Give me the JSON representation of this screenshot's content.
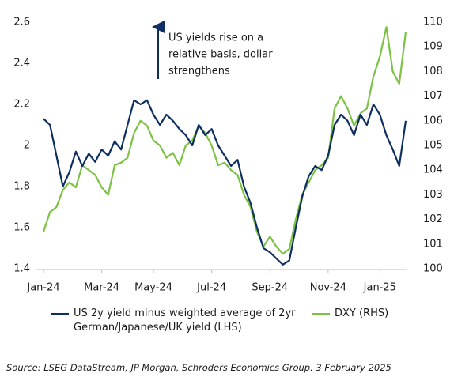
{
  "chart_data": {
    "type": "line",
    "annotation": [
      "US yields rise on a",
      "relative basis, dollar",
      "strengthens"
    ],
    "source": "Source: LSEG DataStream, JP Morgan, Schroders Economics Group. 3 February 2025",
    "categories": [
      "Jan-24",
      null,
      null,
      null,
      null,
      null,
      null,
      null,
      null,
      "Mar-24",
      null,
      null,
      null,
      null,
      null,
      null,
      null,
      "May-24",
      null,
      null,
      null,
      null,
      null,
      null,
      null,
      null,
      "Jul-24",
      null,
      null,
      null,
      null,
      null,
      null,
      null,
      null,
      "Sep-24",
      null,
      null,
      null,
      null,
      null,
      null,
      null,
      null,
      "Nov-24",
      null,
      null,
      null,
      null,
      null,
      null,
      null,
      "Jan-25",
      null,
      null,
      null,
      null
    ],
    "series": [
      {
        "name": "US 2y yield minus weighted average of 2yr German/Japanese/UK yield (LHS)",
        "color": "#0e2f62",
        "axis": "y",
        "values": [
          2.13,
          2.1,
          1.95,
          1.8,
          1.87,
          1.97,
          1.9,
          1.96,
          1.92,
          1.98,
          1.95,
          2.02,
          1.98,
          2.1,
          2.22,
          2.2,
          2.22,
          2.15,
          2.1,
          2.15,
          2.12,
          2.08,
          2.05,
          2.0,
          2.1,
          2.05,
          2.08,
          2.0,
          1.95,
          1.9,
          1.93,
          1.8,
          1.72,
          1.6,
          1.5,
          1.48,
          1.45,
          1.42,
          1.44,
          1.6,
          1.75,
          1.85,
          1.9,
          1.88,
          1.95,
          2.1,
          2.15,
          2.12,
          2.05,
          2.15,
          2.1,
          2.2,
          2.15,
          2.05,
          1.98,
          1.9,
          2.12
        ]
      },
      {
        "name": "DXY (RHS)",
        "color": "#7cc242",
        "axis": "y2",
        "values": [
          101.5,
          102.3,
          102.5,
          103.2,
          103.5,
          103.3,
          104.2,
          104.0,
          103.8,
          103.3,
          103.0,
          104.2,
          104.3,
          104.5,
          105.5,
          106.0,
          105.8,
          105.2,
          105.0,
          104.5,
          104.7,
          104.2,
          105.0,
          105.2,
          105.8,
          105.5,
          105.0,
          104.2,
          104.3,
          104.0,
          103.8,
          103.0,
          102.5,
          101.5,
          100.9,
          101.3,
          100.9,
          100.6,
          100.8,
          102.0,
          103.0,
          103.5,
          104.0,
          104.2,
          104.5,
          106.5,
          107.0,
          106.5,
          105.8,
          106.3,
          106.5,
          107.8,
          108.6,
          109.8,
          108.0,
          107.5,
          109.6
        ]
      }
    ],
    "ylim": [
      1.4,
      2.6
    ],
    "yticks": [
      1.4,
      1.6,
      1.8,
      2.0,
      2.2,
      2.4,
      2.6
    ],
    "y2lim": [
      100,
      110
    ],
    "y2ticks": [
      100,
      101,
      102,
      103,
      104,
      105,
      106,
      107,
      108,
      109,
      110
    ],
    "grid": false
  }
}
